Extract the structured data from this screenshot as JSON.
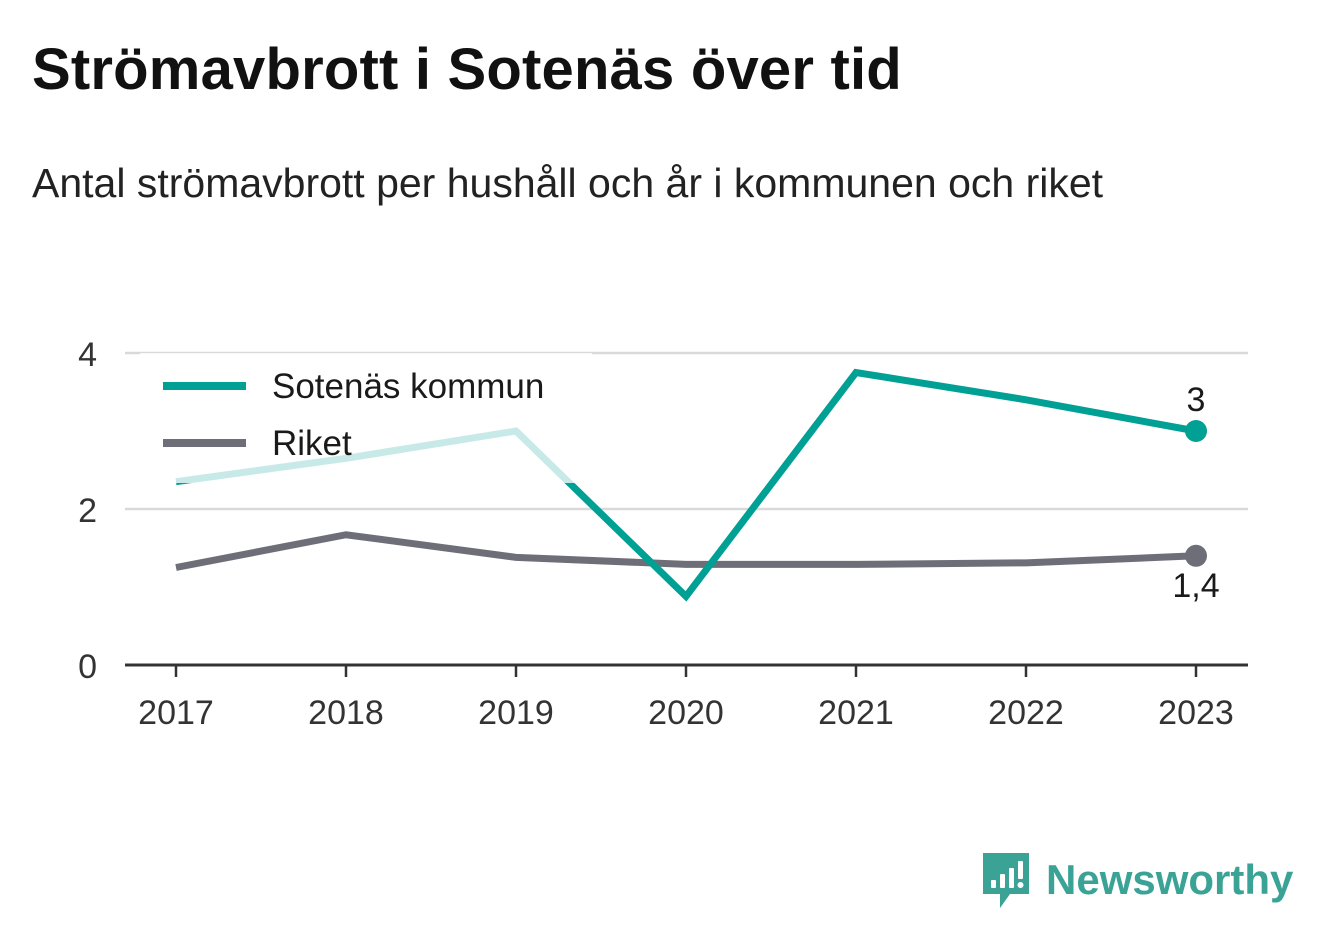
{
  "title": "Strömavbrott i Sotenäs över tid",
  "subtitle": "Antal strömavbrott per hushåll och år i kommunen och riket",
  "brand": "Newsworthy",
  "colors": {
    "sotenas": "#00a095",
    "riket": "#6e6e78",
    "grid": "#d9d9d9",
    "axis": "#333333"
  },
  "chart_data": {
    "type": "line",
    "title": "Strömavbrott i Sotenäs över tid",
    "subtitle": "Antal strömavbrott per hushåll och år i kommunen och riket",
    "xlabel": "",
    "ylabel": "",
    "categories": [
      "2017",
      "2018",
      "2019",
      "2020",
      "2021",
      "2022",
      "2023"
    ],
    "y_ticks": [
      0,
      2,
      4
    ],
    "ylim": [
      0,
      4
    ],
    "grid": true,
    "legend": "top-left",
    "series": [
      {
        "name": "Sotenäs kommun",
        "color": "#00a095",
        "values": [
          2.35,
          2.65,
          3.0,
          0.88,
          3.75,
          3.4,
          3.0
        ],
        "end_label": "3"
      },
      {
        "name": "Riket",
        "color": "#6e6e78",
        "values": [
          1.25,
          1.67,
          1.38,
          1.29,
          1.29,
          1.31,
          1.4
        ],
        "end_label": "1,4"
      }
    ]
  }
}
